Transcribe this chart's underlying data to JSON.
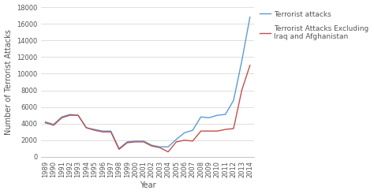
{
  "years": [
    1989,
    1990,
    1991,
    1992,
    1993,
    1994,
    1995,
    1996,
    1997,
    1998,
    1999,
    2000,
    2001,
    2002,
    2003,
    2004,
    2005,
    2006,
    2007,
    2008,
    2009,
    2010,
    2011,
    2012,
    2013,
    2014
  ],
  "total_attacks": [
    4200,
    3900,
    4800,
    5100,
    5000,
    3500,
    3300,
    3100,
    3100,
    1000,
    1800,
    1900,
    1900,
    1400,
    1200,
    1200,
    2100,
    2900,
    3200,
    4800,
    4700,
    5000,
    5100,
    6800,
    11500,
    16800
  ],
  "excl_iraq_afghan": [
    4100,
    3800,
    4700,
    5000,
    5000,
    3500,
    3200,
    3000,
    3000,
    900,
    1700,
    1800,
    1800,
    1300,
    1100,
    600,
    1800,
    2000,
    1900,
    3100,
    3100,
    3100,
    3300,
    3400,
    8000,
    11000
  ],
  "line_color_total": "#5b9bd5",
  "line_color_excl": "#c0504d",
  "ylabel": "Number of Terrorist Attacks",
  "xlabel": "Year",
  "ylim": [
    0,
    18000
  ],
  "yticks": [
    0,
    2000,
    4000,
    6000,
    8000,
    10000,
    12000,
    14000,
    16000,
    18000
  ],
  "legend_total": "Terrorist attacks",
  "legend_excl": "Terrorist Attacks Excluding\nIraq and Afghanistan",
  "bg_color": "#ffffff",
  "plot_bg_color": "#ffffff",
  "grid_color": "#d9d9d9",
  "label_fontsize": 7,
  "tick_fontsize": 6,
  "legend_fontsize": 6.5
}
